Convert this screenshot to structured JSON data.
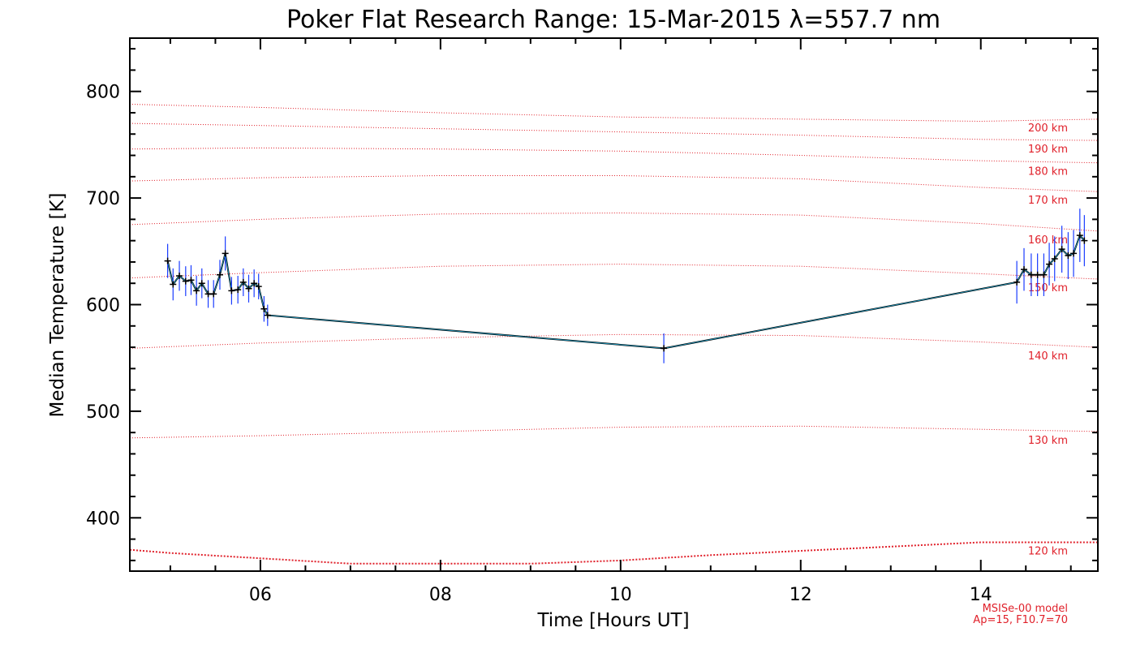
{
  "chart_data": {
    "type": "line",
    "title": "Poker Flat Research Range: 15-Mar-2015 λ=557.7 nm",
    "xlabel": "Time [Hours UT]",
    "ylabel": "Median Temperature [K]",
    "xlim": [
      4.55,
      15.3
    ],
    "ylim": [
      350,
      850
    ],
    "x_ticks": [
      6,
      8,
      10,
      12,
      14
    ],
    "x_tick_labels": [
      "06",
      "08",
      "10",
      "12",
      "14"
    ],
    "y_ticks": [
      400,
      500,
      600,
      700,
      800
    ],
    "y_tick_labels": [
      "400",
      "500",
      "600",
      "700",
      "800"
    ],
    "grid": false,
    "series": [
      {
        "points": [
          {
            "x": 4.97,
            "y": 641,
            "err": 16
          },
          {
            "x": 5.03,
            "y": 619,
            "err": 15
          },
          {
            "x": 5.1,
            "y": 627,
            "err": 14
          },
          {
            "x": 5.17,
            "y": 622,
            "err": 14
          },
          {
            "x": 5.23,
            "y": 623,
            "err": 14
          },
          {
            "x": 5.29,
            "y": 613,
            "err": 14
          },
          {
            "x": 5.35,
            "y": 620,
            "err": 14
          },
          {
            "x": 5.42,
            "y": 610,
            "err": 13
          },
          {
            "x": 5.48,
            "y": 610,
            "err": 13
          },
          {
            "x": 5.55,
            "y": 628,
            "err": 14
          },
          {
            "x": 5.61,
            "y": 648,
            "err": 16
          },
          {
            "x": 5.68,
            "y": 613,
            "err": 13
          },
          {
            "x": 5.75,
            "y": 614,
            "err": 13
          },
          {
            "x": 5.81,
            "y": 621,
            "err": 13
          },
          {
            "x": 5.87,
            "y": 615,
            "err": 13
          },
          {
            "x": 5.93,
            "y": 620,
            "err": 13
          },
          {
            "x": 5.98,
            "y": 617,
            "err": 12
          },
          {
            "x": 6.04,
            "y": 596,
            "err": 12
          },
          {
            "x": 6.08,
            "y": 590,
            "err": 10
          },
          {
            "x": 10.48,
            "y": 559,
            "err": 14
          },
          {
            "x": 14.4,
            "y": 621,
            "err": 20
          },
          {
            "x": 14.48,
            "y": 633,
            "err": 20
          },
          {
            "x": 14.56,
            "y": 628,
            "err": 20
          },
          {
            "x": 14.63,
            "y": 628,
            "err": 20
          },
          {
            "x": 14.7,
            "y": 628,
            "err": 20
          },
          {
            "x": 14.76,
            "y": 638,
            "err": 20
          },
          {
            "x": 14.82,
            "y": 643,
            "err": 21
          },
          {
            "x": 14.9,
            "y": 652,
            "err": 22
          },
          {
            "x": 14.97,
            "y": 646,
            "err": 22
          },
          {
            "x": 15.03,
            "y": 648,
            "err": 22
          },
          {
            "x": 15.1,
            "y": 665,
            "err": 25
          },
          {
            "x": 15.15,
            "y": 660,
            "err": 24
          }
        ]
      }
    ],
    "model_curves": [
      {
        "label": "120 km",
        "values": [
          [
            4.55,
            370
          ],
          [
            5.0,
            367
          ],
          [
            6.0,
            362
          ],
          [
            7.0,
            357
          ],
          [
            8.0,
            357
          ],
          [
            9.0,
            357
          ],
          [
            10.0,
            360
          ],
          [
            11.0,
            365
          ],
          [
            12.0,
            369
          ],
          [
            13.0,
            373
          ],
          [
            14.0,
            377
          ],
          [
            15.3,
            377
          ]
        ]
      },
      {
        "label": "130 km",
        "values": [
          [
            4.55,
            475
          ],
          [
            6.0,
            477
          ],
          [
            8.0,
            481
          ],
          [
            10.0,
            485
          ],
          [
            12.0,
            486
          ],
          [
            14.0,
            483
          ],
          [
            15.3,
            481
          ]
        ]
      },
      {
        "label": "140 km",
        "values": [
          [
            4.55,
            559
          ],
          [
            6.0,
            564
          ],
          [
            8.0,
            569
          ],
          [
            10.0,
            572
          ],
          [
            12.0,
            571
          ],
          [
            14.0,
            565
          ],
          [
            15.3,
            560
          ]
        ]
      },
      {
        "label": "150 km",
        "values": [
          [
            4.55,
            625
          ],
          [
            6.0,
            630
          ],
          [
            8.0,
            636
          ],
          [
            10.0,
            638
          ],
          [
            12.0,
            636
          ],
          [
            14.0,
            629
          ],
          [
            15.3,
            624
          ]
        ]
      },
      {
        "label": "160 km",
        "values": [
          [
            4.55,
            675
          ],
          [
            6.0,
            680
          ],
          [
            8.0,
            685
          ],
          [
            10.0,
            686
          ],
          [
            12.0,
            684
          ],
          [
            14.0,
            676
          ],
          [
            15.3,
            669
          ]
        ]
      },
      {
        "label": "170 km",
        "values": [
          [
            4.55,
            716
          ],
          [
            6.0,
            719
          ],
          [
            8.0,
            721
          ],
          [
            10.0,
            721
          ],
          [
            12.0,
            718
          ],
          [
            14.0,
            710
          ],
          [
            15.3,
            706
          ]
        ]
      },
      {
        "label": "180 km",
        "values": [
          [
            4.55,
            746
          ],
          [
            6.0,
            747
          ],
          [
            8.0,
            746
          ],
          [
            10.0,
            744
          ],
          [
            12.0,
            740
          ],
          [
            14.0,
            735
          ],
          [
            15.3,
            733
          ]
        ]
      },
      {
        "label": "190 km",
        "values": [
          [
            4.55,
            770
          ],
          [
            6.0,
            768
          ],
          [
            8.0,
            765
          ],
          [
            10.0,
            762
          ],
          [
            12.0,
            759
          ],
          [
            14.0,
            755
          ],
          [
            15.3,
            754
          ]
        ]
      },
      {
        "label": "200 km",
        "values": [
          [
            4.55,
            788
          ],
          [
            6.0,
            785
          ],
          [
            8.0,
            780
          ],
          [
            10.0,
            776
          ],
          [
            12.0,
            774
          ],
          [
            14.0,
            772
          ],
          [
            15.3,
            774
          ]
        ]
      }
    ],
    "model_note": [
      "MSISe-00 model",
      "Ap=15, F10.7=70"
    ],
    "colors": {
      "axes": "#000000",
      "data_line": "#000000",
      "data_line_inner": "#1fa0c8",
      "error_bars": "#1a3cff",
      "model": "#e0202a"
    }
  }
}
